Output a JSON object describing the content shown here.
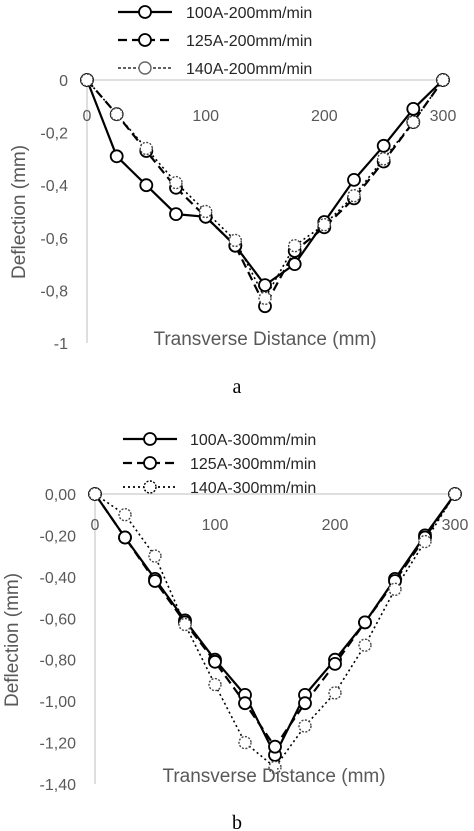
{
  "chart_data": [
    {
      "type": "line",
      "panel_label": "a",
      "xlabel": "Transverse Distance (mm)",
      "ylabel": "Deflection (mm)",
      "xlim": [
        0,
        300
      ],
      "ylim": [
        -1,
        0
      ],
      "xticks": [
        "0",
        "100",
        "200",
        "300"
      ],
      "yticks": [
        "0",
        "-0,2",
        "-0,4",
        "-0,6",
        "-0,8",
        "-1"
      ],
      "grid": false,
      "legend_position": "top",
      "series": [
        {
          "name": "100A-200mm/min",
          "style": "solid",
          "x": [
            0,
            25,
            50,
            75,
            100,
            125,
            150,
            175,
            200,
            225,
            250,
            275,
            300
          ],
          "y": [
            0,
            -0.29,
            -0.4,
            -0.51,
            -0.52,
            -0.63,
            -0.78,
            -0.7,
            -0.54,
            -0.38,
            -0.25,
            -0.11,
            0
          ]
        },
        {
          "name": "125A-200mm/min",
          "style": "dashed",
          "x": [
            0,
            25,
            50,
            75,
            100,
            125,
            150,
            175,
            200,
            225,
            250,
            275,
            300
          ],
          "y": [
            0,
            -0.13,
            -0.27,
            -0.41,
            -0.52,
            -0.63,
            -0.86,
            -0.65,
            -0.56,
            -0.45,
            -0.31,
            -0.16,
            0
          ]
        },
        {
          "name": "140A-200mm/min",
          "style": "dotted",
          "x": [
            0,
            25,
            50,
            75,
            100,
            125,
            150,
            175,
            200,
            225,
            250,
            275,
            300
          ],
          "y": [
            0,
            -0.13,
            -0.26,
            -0.39,
            -0.5,
            -0.61,
            -0.83,
            -0.63,
            -0.55,
            -0.44,
            -0.3,
            -0.16,
            0
          ]
        }
      ]
    },
    {
      "type": "line",
      "panel_label": "b",
      "xlabel": "Transverse Distance (mm)",
      "ylabel": "Deflection (mm)",
      "xlim": [
        0,
        300
      ],
      "ylim": [
        -1.4,
        0
      ],
      "xticks": [
        "0",
        "100",
        "200",
        "300"
      ],
      "yticks": [
        "0,00",
        "-0,20",
        "-0,40",
        "-0,60",
        "-0,80",
        "-1,00",
        "-1,20",
        "-1,40"
      ],
      "grid": false,
      "legend_position": "top",
      "series": [
        {
          "name": "100A-300mm/min",
          "style": "solid",
          "x": [
            0,
            25,
            50,
            75,
            100,
            125,
            150,
            175,
            200,
            225,
            250,
            275,
            300
          ],
          "y": [
            0,
            -0.21,
            -0.41,
            -0.61,
            -0.8,
            -0.97,
            -1.26,
            -0.97,
            -0.8,
            -0.62,
            -0.41,
            -0.2,
            0
          ]
        },
        {
          "name": "125A-300mm/min",
          "style": "dashed",
          "x": [
            0,
            25,
            50,
            75,
            100,
            125,
            150,
            175,
            200,
            225,
            250,
            275,
            300
          ],
          "y": [
            0,
            -0.21,
            -0.42,
            -0.62,
            -0.81,
            -1.01,
            -1.22,
            -1.01,
            -0.82,
            -0.62,
            -0.42,
            -0.21,
            0
          ]
        },
        {
          "name": "140A-300mm/min",
          "style": "dotted",
          "x": [
            0,
            25,
            50,
            75,
            100,
            125,
            150,
            175,
            200,
            225,
            250,
            275,
            300
          ],
          "y": [
            0,
            -0.1,
            -0.3,
            -0.63,
            -0.92,
            -1.2,
            -1.32,
            -1.12,
            -0.96,
            -0.73,
            -0.46,
            -0.23,
            0
          ]
        }
      ]
    }
  ]
}
